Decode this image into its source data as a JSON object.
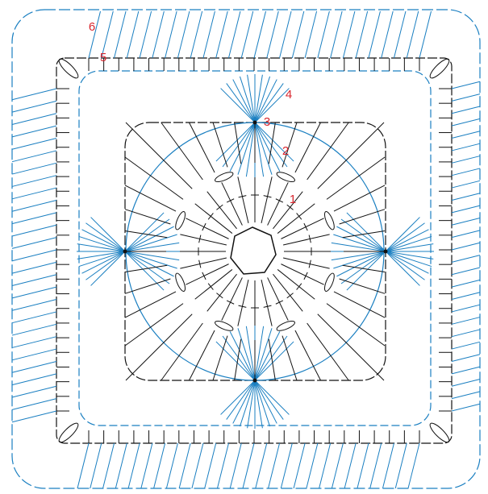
{
  "round_labels": [
    "1",
    "2",
    "3",
    "4",
    "5",
    "6"
  ]
}
